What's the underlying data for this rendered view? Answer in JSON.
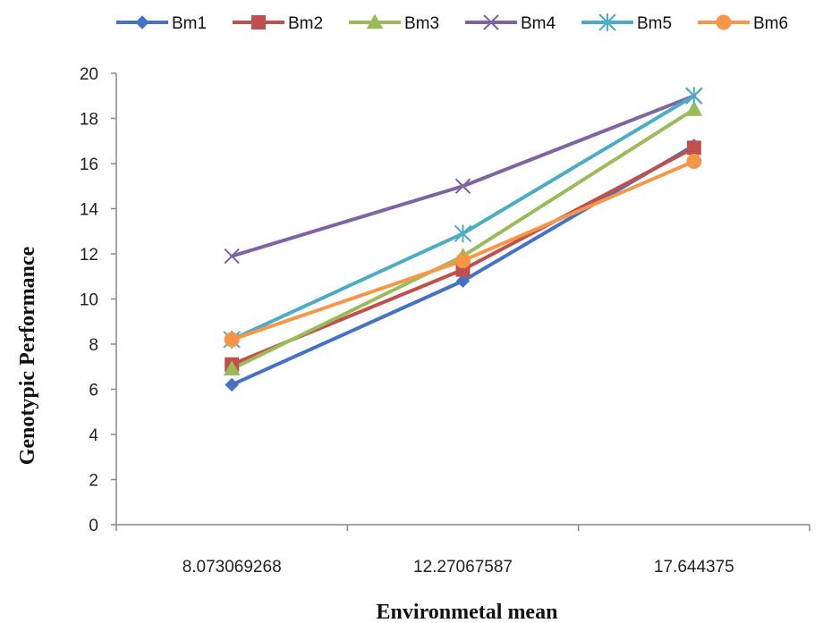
{
  "chart_data": {
    "type": "line",
    "title": "",
    "xlabel": "Environmetal mean",
    "ylabel": "Genotypic Performance",
    "categories": [
      "8.073069268",
      "12.27067587",
      "17.644375"
    ],
    "ylim": [
      0,
      20
    ],
    "yticks": [
      0,
      2,
      4,
      6,
      8,
      10,
      12,
      14,
      16,
      18,
      20
    ],
    "grid": false,
    "legend_position": "top",
    "series": [
      {
        "name": "Bm1",
        "color": "#4472C4",
        "marker": "diamond",
        "values": [
          6.2,
          10.8,
          16.8
        ]
      },
      {
        "name": "Bm2",
        "color": "#C0504D",
        "marker": "square",
        "values": [
          7.1,
          11.3,
          16.7
        ]
      },
      {
        "name": "Bm3",
        "color": "#9BBB59",
        "marker": "triangle",
        "values": [
          6.9,
          11.9,
          18.4
        ]
      },
      {
        "name": "Bm4",
        "color": "#8064A2",
        "marker": "x",
        "values": [
          11.9,
          15.0,
          19.0
        ]
      },
      {
        "name": "Bm5",
        "color": "#4BACC6",
        "marker": "star",
        "values": [
          8.2,
          12.9,
          19.0
        ]
      },
      {
        "name": "Bm6",
        "color": "#F79646",
        "marker": "circle",
        "values": [
          8.2,
          11.7,
          16.1
        ]
      }
    ]
  }
}
